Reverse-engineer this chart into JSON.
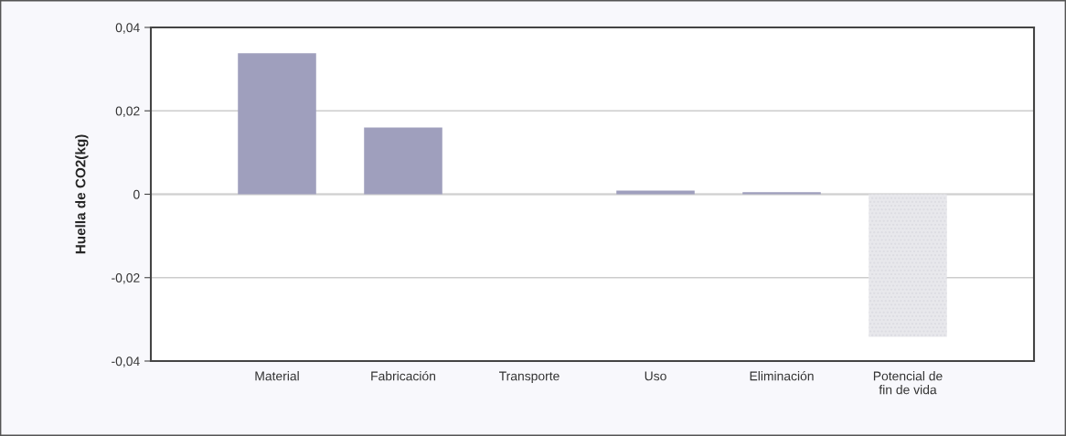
{
  "chart_data": {
    "type": "bar",
    "ylabel": "Huella de CO2(kg)",
    "categories": [
      "Material",
      "Fabricación",
      "Transporte",
      "Uso",
      "Eliminación",
      "Potencial de\nfin de vida"
    ],
    "values": [
      0.0338,
      0.016,
      0,
      0.0009,
      0.0005,
      -0.0342
    ],
    "colors": [
      "#9f9fbd",
      "#9f9fbd",
      "#9f9fbd",
      "#9f9fbd",
      "#9f9fbd",
      "#e8e8ec"
    ],
    "ylim": [
      -0.04,
      0.04
    ],
    "yticks": [
      {
        "value": -0.04,
        "label": "-0,04"
      },
      {
        "value": -0.02,
        "label": "-0,02"
      },
      {
        "value": 0,
        "label": "0"
      },
      {
        "value": 0.02,
        "label": "0,02"
      },
      {
        "value": 0.04,
        "label": "0,04"
      }
    ],
    "grid": "y"
  }
}
